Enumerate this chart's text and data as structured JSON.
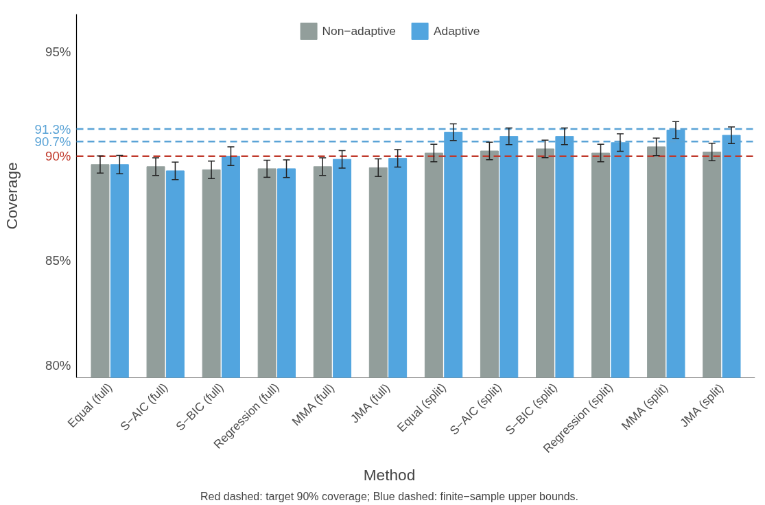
{
  "chart_data": {
    "type": "bar",
    "xlabel": "Method",
    "ylabel": "Coverage",
    "categories": [
      "Equal (full)",
      "S−AIC (full)",
      "S−BIC (full)",
      "Regression (full)",
      "MMA (full)",
      "JMA (full)",
      "Equal (split)",
      "S−AIC (split)",
      "S−BIC (split)",
      "Regression (split)",
      "MMA (split)",
      "JMA (split)"
    ],
    "series": [
      {
        "name": "Non−adaptive",
        "color": "#929e9b",
        "values": [
          89.6,
          89.5,
          89.35,
          89.4,
          89.5,
          89.45,
          90.15,
          90.25,
          90.35,
          90.15,
          90.45,
          90.2
        ],
        "errors": [
          0.41,
          0.42,
          0.42,
          0.41,
          0.42,
          0.42,
          0.42,
          0.42,
          0.42,
          0.42,
          0.42,
          0.42
        ]
      },
      {
        "name": "Adaptive",
        "color": "#52a5df",
        "values": [
          89.6,
          89.3,
          90.0,
          89.4,
          89.85,
          89.9,
          91.15,
          90.95,
          90.95,
          90.65,
          91.25,
          91.0
        ],
        "errors": [
          0.44,
          0.42,
          0.45,
          0.42,
          0.42,
          0.42,
          0.4,
          0.4,
          0.4,
          0.42,
          0.4,
          0.4
        ]
      }
    ],
    "ylim": [
      79.4,
      96.8
    ],
    "yticks": [
      {
        "value": 80,
        "label": "80%"
      },
      {
        "value": 85,
        "label": "85%"
      },
      {
        "value": 95,
        "label": "95%"
      }
    ],
    "ref_lines": [
      {
        "axis": "y",
        "value": 90,
        "label": "90%",
        "color": "#c0392b",
        "line_style": "dashed"
      },
      {
        "axis": "y",
        "value": 90.7,
        "label": "90.7%",
        "color": "#5aa3d6",
        "line_style": "dashed"
      },
      {
        "axis": "y",
        "value": 91.3,
        "label": "91.3%",
        "color": "#5aa3d6",
        "line_style": "dashed"
      }
    ],
    "annotations": [
      "Red dashed: target 90% coverage; Blue dashed: finite−sample upper bounds."
    ],
    "legend": "top",
    "grid": false
  }
}
